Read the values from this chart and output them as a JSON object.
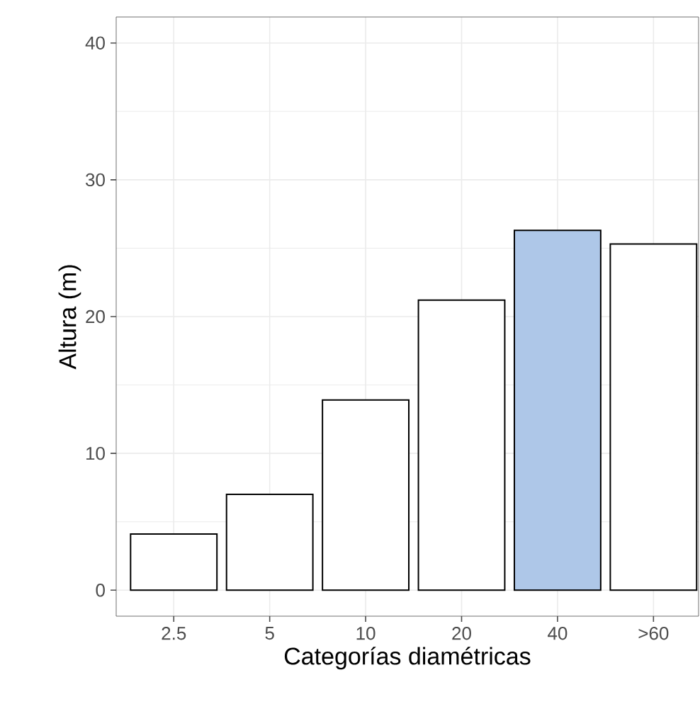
{
  "chart_data": {
    "type": "bar",
    "xlabel": "Categorías diamétricas",
    "ylabel": "Altura (m)",
    "categories": [
      "2.5",
      "5",
      "10",
      "20",
      "40",
      ">60"
    ],
    "values": [
      4.1,
      7.0,
      13.9,
      21.2,
      26.3,
      25.3
    ],
    "colors": [
      "#ffffff",
      "#ffffff",
      "#ffffff",
      "#ffffff",
      "#aec7e8",
      "#ffffff"
    ],
    "ylim": [
      -1.9,
      41.9
    ],
    "yticks": [
      0,
      10,
      20,
      30,
      40
    ],
    "grid": true
  }
}
